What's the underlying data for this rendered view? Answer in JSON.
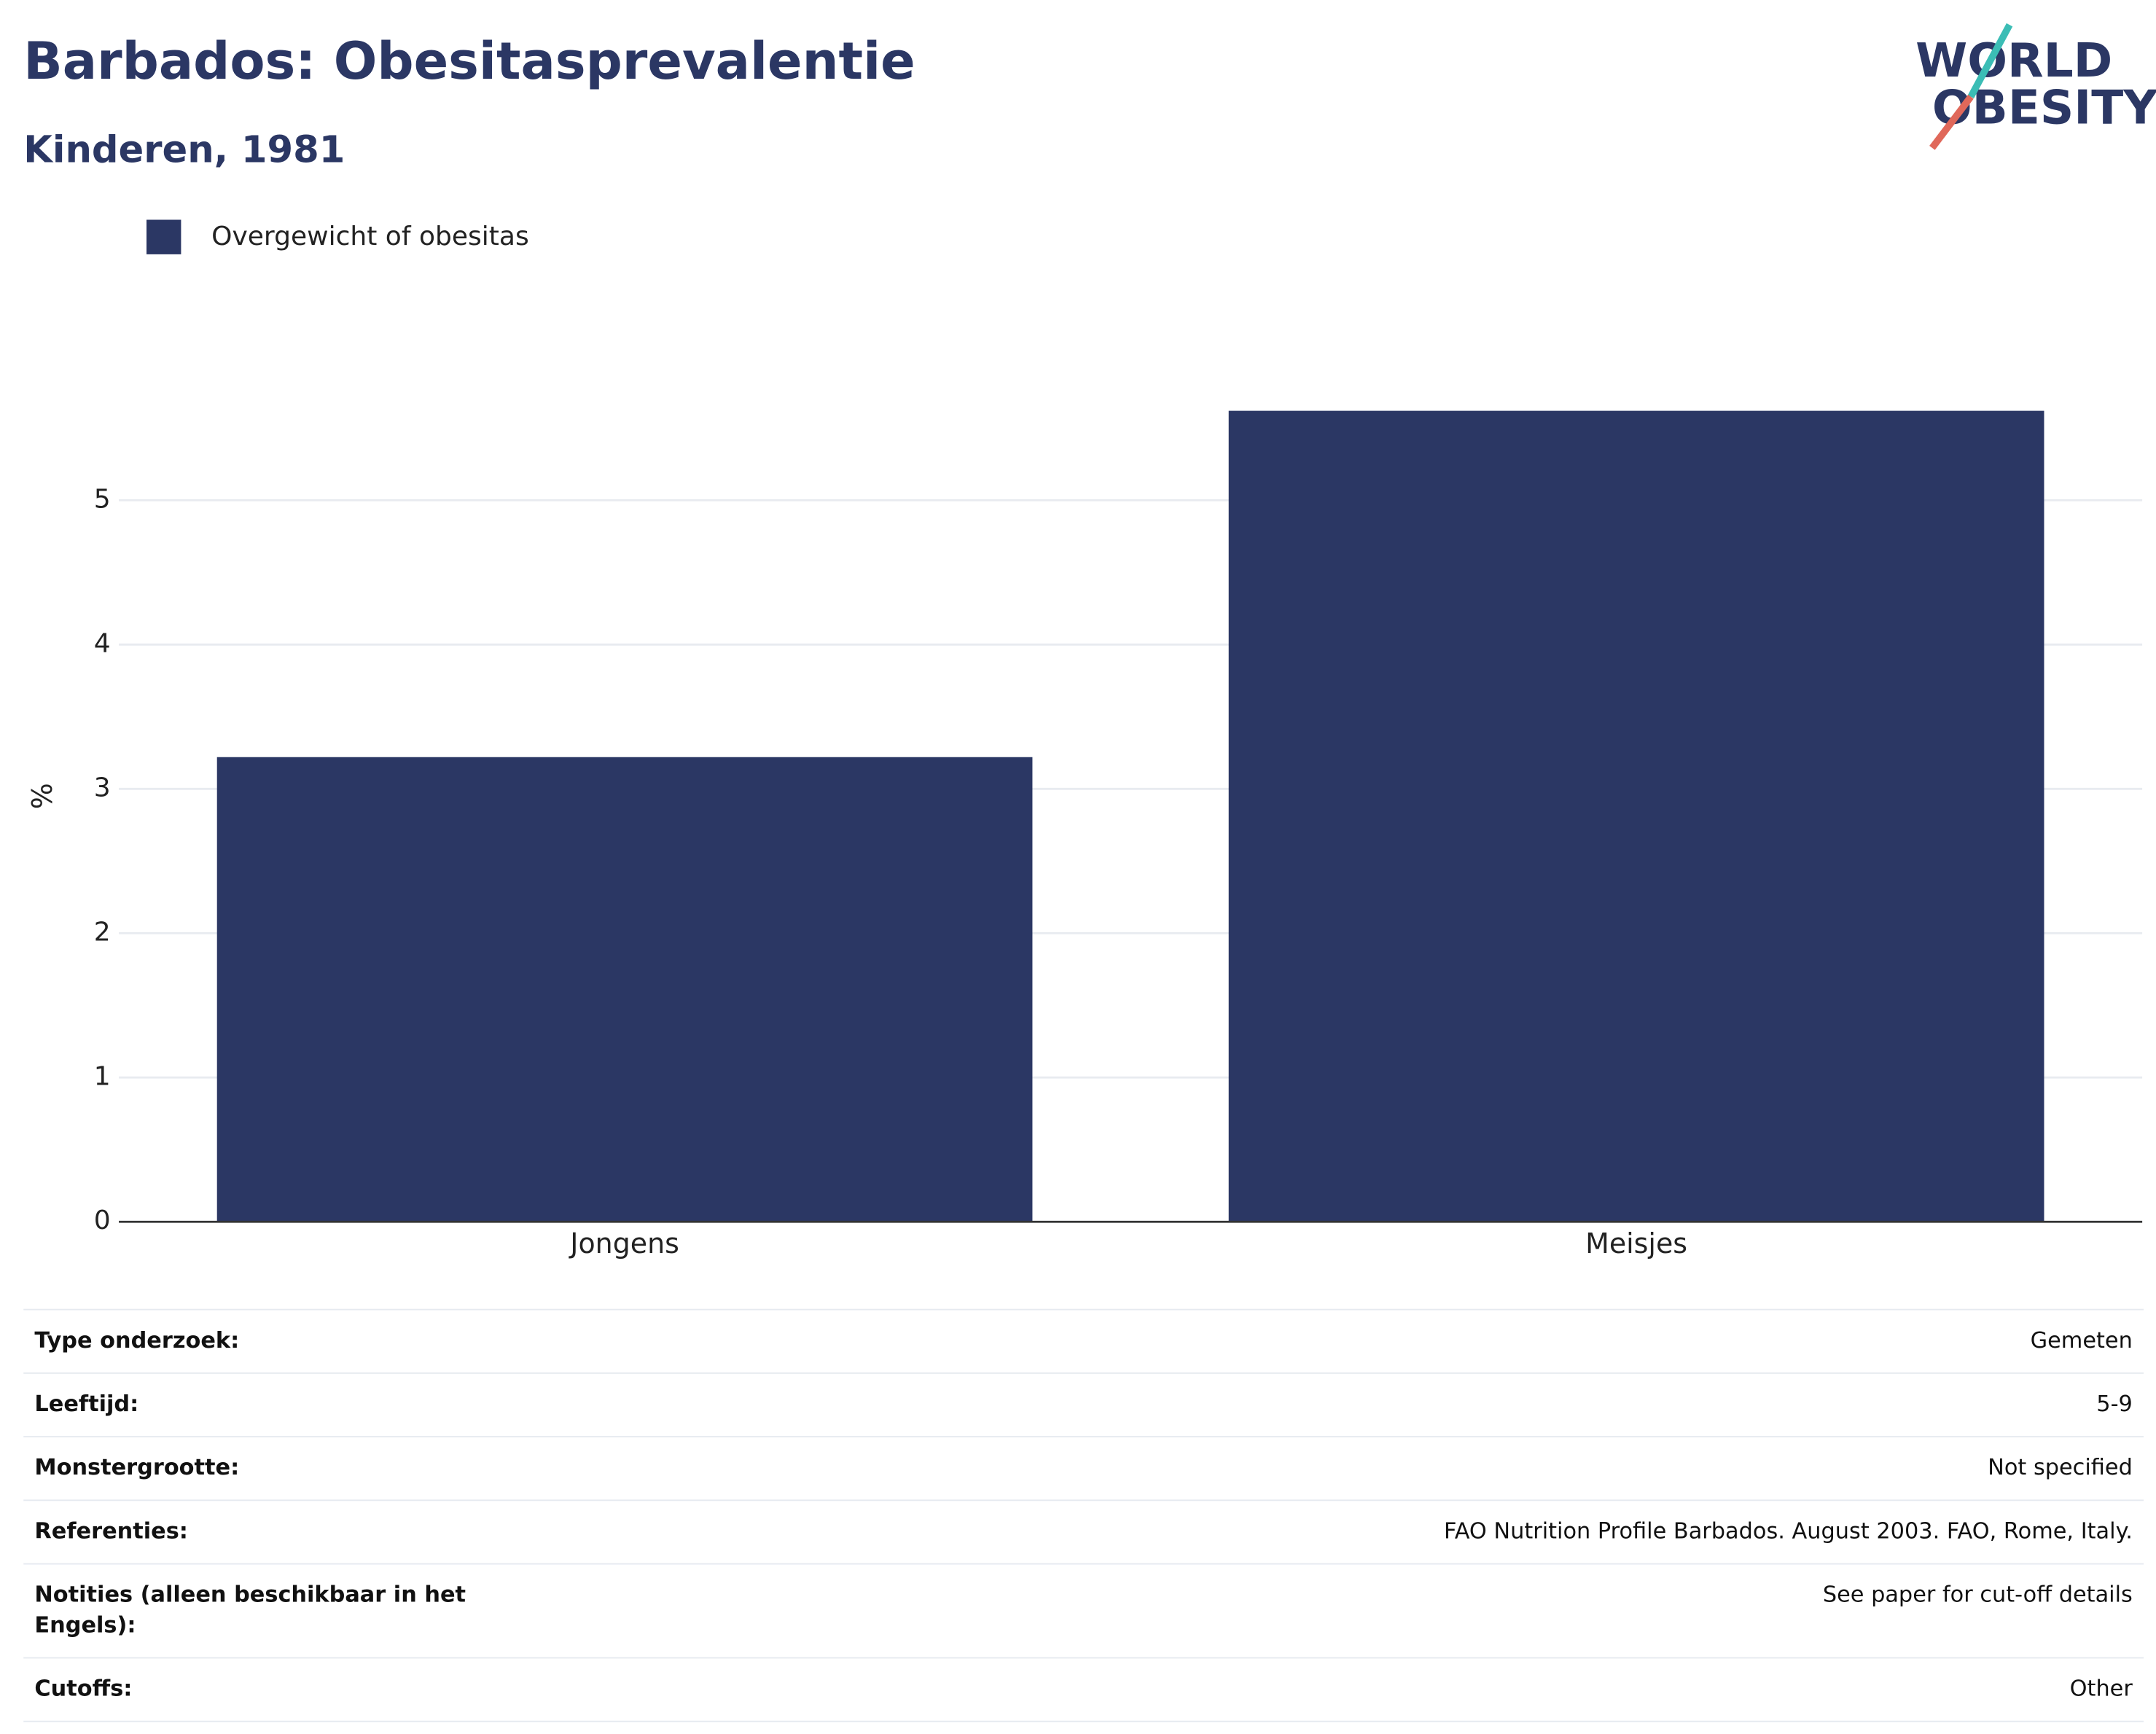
{
  "chart_data": {
    "type": "bar",
    "title": "Barbados: Obesitasprevalentie",
    "subtitle": "Kinderen, 1981",
    "y_label": "%",
    "categories": [
      "Jongens",
      "Meisjes"
    ],
    "series": [
      {
        "name": "Overgewicht of obesitas",
        "color": "#2b3764",
        "values": [
          3.22,
          5.62
        ]
      }
    ],
    "ylim": [
      0,
      5.9
    ],
    "yticks": [
      0,
      1,
      2,
      3,
      4,
      5
    ],
    "grid": true
  },
  "logo": {
    "line1": "WORLD",
    "line2": "OBESITY"
  },
  "table": {
    "rows": [
      [
        "Type onderzoek:",
        "Gemeten"
      ],
      [
        "Leeftijd:",
        "5-9"
      ],
      [
        "Monstergrootte:",
        "Not specified"
      ],
      [
        "Referenties:",
        "FAO Nutrition Profile Barbados. August 2003. FAO, Rome, Italy."
      ],
      [
        "Notities (alleen beschikbaar in het Engels):",
        "See paper for cut-off details"
      ],
      [
        "Cutoffs:",
        "Other"
      ]
    ]
  }
}
